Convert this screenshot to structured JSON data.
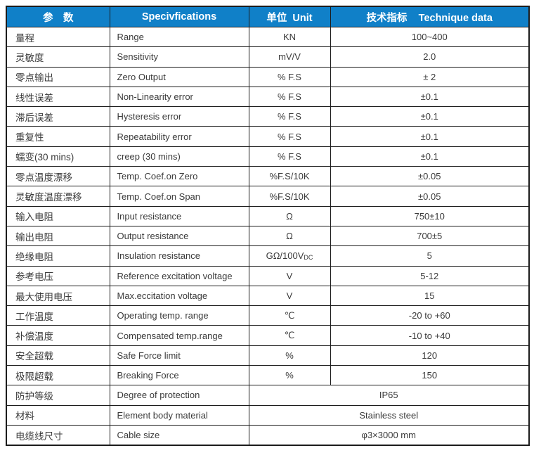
{
  "title": "Load cell technical specification table",
  "colors": {
    "header_bg": "#1080C8",
    "header_text": "#FFFFFF",
    "border": "#1C1C1C",
    "body_text": "#3A3A3A"
  },
  "header": {
    "col_param": "参　数",
    "col_spec": "Specivfications",
    "col_unit": "单位  Unit",
    "col_data": "技术指标    Technique data"
  },
  "rows": [
    {
      "cn": "量程",
      "spec": "Range",
      "unit": "KN",
      "value": "100~400"
    },
    {
      "cn": "灵敏度",
      "spec": "Sensitivity",
      "unit": "mV/V",
      "value": "2.0"
    },
    {
      "cn": "零点输出",
      "spec": "Zero Output",
      "unit": "% F.S",
      "value": "± 2"
    },
    {
      "cn": "线性误差",
      "spec": "Non-Linearity error",
      "unit": "% F.S",
      "value": "±0.1"
    },
    {
      "cn": "滞后误差",
      "spec": "Hysteresis error",
      "unit": "% F.S",
      "value": "±0.1"
    },
    {
      "cn": "重复性",
      "spec": "Repeatability error",
      "unit": "% F.S",
      "value": "±0.1"
    },
    {
      "cn": "蠕变(30 mins)",
      "spec": "creep (30 mins)",
      "unit": "% F.S",
      "value": "±0.1"
    },
    {
      "cn": "零点温度漂移",
      "spec": "Temp. Coef.on Zero",
      "unit": "%F.S/10K",
      "value": "±0.05"
    },
    {
      "cn": "灵敏度温度漂移",
      "spec": "Temp. Coef.on Span",
      "unit": "%F.S/10K",
      "value": "±0.05"
    },
    {
      "cn": "输入电阻",
      "spec": "Input resistance",
      "unit": "Ω",
      "value": "750±10"
    },
    {
      "cn": "输出电阻",
      "spec": "Output resistance",
      "unit": "Ω",
      "value": "700±5"
    },
    {
      "cn": "绝缘电阻",
      "spec": "Insulation resistance",
      "unit": "GΩ/100V",
      "unit_sub": "DC",
      "value": "5"
    },
    {
      "cn": "参考电压",
      "spec": "Reference excitation voltage",
      "unit": "V",
      "value": "5-12"
    },
    {
      "cn": "最大使用电压",
      "spec": "Max.eccitation voltage",
      "unit": "V",
      "value": "15"
    },
    {
      "cn": "工作温度",
      "spec": "Operating temp. range",
      "unit": "℃",
      "value": "-20 to +60"
    },
    {
      "cn": "补偿温度",
      "spec": "Compensated temp.range",
      "unit": "℃",
      "value": "-10 to +40"
    },
    {
      "cn": "安全超载",
      "spec": "Safe Force limit",
      "unit": "%",
      "value": "120"
    },
    {
      "cn": "极限超载",
      "spec": "Breaking Force",
      "unit": "%",
      "value": "150"
    },
    {
      "cn": "防护等级",
      "spec": "Degree of protection",
      "merged": true,
      "value": "IP65"
    },
    {
      "cn": "材料",
      "spec": "Element body material",
      "merged": true,
      "value": "Stainless steel"
    },
    {
      "cn": "电缆线尺寸",
      "spec": "Cable size",
      "merged": true,
      "value": "φ3×3000 mm"
    }
  ]
}
